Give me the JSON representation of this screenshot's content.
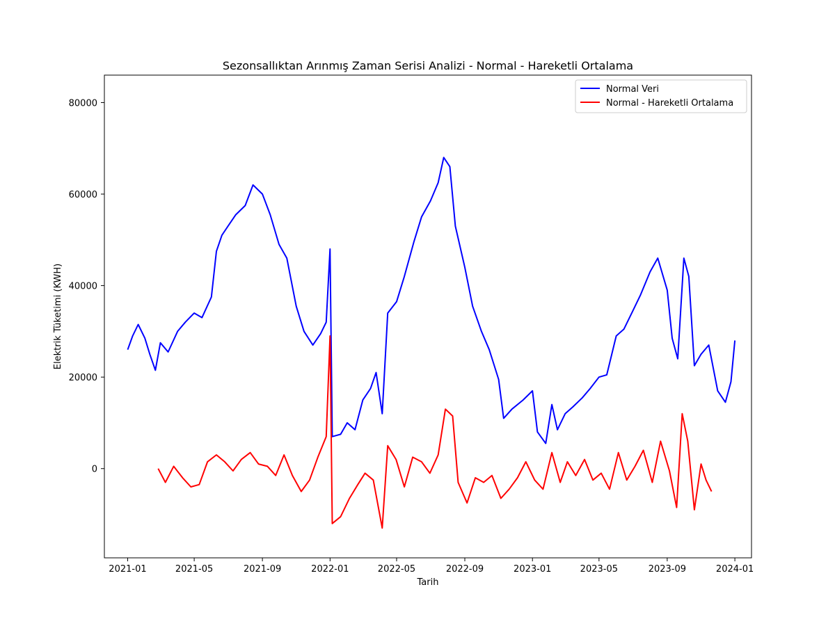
{
  "chart_data": {
    "type": "line",
    "title": "Sezonsallıktan Arınmış Zaman Serisi Analizi - Normal - Hareketli Ortalama",
    "xlabel": "Tarih",
    "ylabel": "Elektrik Tüketimi (KWH)",
    "xlim": [
      "2020-11-20",
      "2024-01-31"
    ],
    "ylim": [
      -19500,
      86000
    ],
    "x_ticks": [
      "2021-01",
      "2021-05",
      "2021-09",
      "2022-01",
      "2022-05",
      "2022-09",
      "2023-01",
      "2023-05",
      "2023-09",
      "2024-01"
    ],
    "y_ticks": [
      0,
      20000,
      40000,
      60000,
      80000
    ],
    "grid": false,
    "legend_position": "top-right",
    "series": [
      {
        "name": "Normal Veri",
        "color": "#0000ff",
        "points": [
          [
            "2021-01-01",
            26000
          ],
          [
            "2021-01-10",
            29000
          ],
          [
            "2021-01-20",
            31500
          ],
          [
            "2021-02-01",
            28500
          ],
          [
            "2021-02-10",
            25000
          ],
          [
            "2021-02-20",
            21500
          ],
          [
            "2021-03-01",
            27500
          ],
          [
            "2021-03-15",
            25500
          ],
          [
            "2021-04-01",
            30000
          ],
          [
            "2021-04-15",
            32000
          ],
          [
            "2021-05-01",
            34000
          ],
          [
            "2021-05-15",
            33000
          ],
          [
            "2021-06-01",
            37500
          ],
          [
            "2021-06-10",
            47500
          ],
          [
            "2021-06-20",
            51000
          ],
          [
            "2021-07-01",
            53000
          ],
          [
            "2021-07-15",
            55500
          ],
          [
            "2021-08-01",
            57500
          ],
          [
            "2021-08-15",
            62000
          ],
          [
            "2021-09-01",
            60000
          ],
          [
            "2021-09-15",
            55500
          ],
          [
            "2021-10-01",
            49000
          ],
          [
            "2021-10-15",
            46000
          ],
          [
            "2021-11-01",
            35500
          ],
          [
            "2021-11-15",
            30000
          ],
          [
            "2021-12-01",
            27000
          ],
          [
            "2021-12-15",
            29500
          ],
          [
            "2021-12-25",
            32000
          ],
          [
            "2022-01-01",
            48000
          ],
          [
            "2022-01-05",
            7000
          ],
          [
            "2022-01-20",
            7500
          ],
          [
            "2022-02-01",
            10000
          ],
          [
            "2022-02-15",
            8500
          ],
          [
            "2022-03-01",
            15000
          ],
          [
            "2022-03-15",
            17500
          ],
          [
            "2022-03-25",
            21000
          ],
          [
            "2022-04-05",
            12000
          ],
          [
            "2022-04-15",
            34000
          ],
          [
            "2022-05-01",
            36500
          ],
          [
            "2022-05-15",
            42000
          ],
          [
            "2022-06-01",
            49500
          ],
          [
            "2022-06-15",
            55000
          ],
          [
            "2022-07-01",
            58500
          ],
          [
            "2022-07-15",
            62500
          ],
          [
            "2022-07-25",
            68000
          ],
          [
            "2022-08-05",
            66000
          ],
          [
            "2022-08-15",
            53000
          ],
          [
            "2022-09-01",
            44000
          ],
          [
            "2022-09-15",
            35500
          ],
          [
            "2022-10-01",
            30000
          ],
          [
            "2022-10-15",
            26000
          ],
          [
            "2022-11-01",
            19500
          ],
          [
            "2022-11-10",
            11000
          ],
          [
            "2022-11-25",
            13000
          ],
          [
            "2022-12-15",
            15000
          ],
          [
            "2023-01-01",
            17000
          ],
          [
            "2023-01-10",
            8000
          ],
          [
            "2023-01-25",
            5500
          ],
          [
            "2023-02-05",
            14000
          ],
          [
            "2023-02-15",
            8500
          ],
          [
            "2023-03-01",
            12000
          ],
          [
            "2023-03-15",
            13500
          ],
          [
            "2023-04-01",
            15500
          ],
          [
            "2023-04-15",
            17500
          ],
          [
            "2023-05-01",
            20000
          ],
          [
            "2023-05-15",
            20500
          ],
          [
            "2023-06-01",
            29000
          ],
          [
            "2023-06-15",
            30500
          ],
          [
            "2023-07-01",
            34500
          ],
          [
            "2023-07-15",
            38000
          ],
          [
            "2023-08-01",
            43000
          ],
          [
            "2023-08-15",
            46000
          ],
          [
            "2023-09-01",
            39000
          ],
          [
            "2023-09-10",
            28500
          ],
          [
            "2023-09-20",
            24000
          ],
          [
            "2023-10-01",
            46000
          ],
          [
            "2023-10-10",
            42000
          ],
          [
            "2023-10-20",
            22500
          ],
          [
            "2023-11-01",
            25000
          ],
          [
            "2023-11-15",
            27000
          ],
          [
            "2023-12-01",
            17000
          ],
          [
            "2023-12-15",
            14500
          ],
          [
            "2023-12-25",
            19000
          ],
          [
            "2024-01-01",
            28000
          ]
        ]
      },
      {
        "name": "Normal - Hareketli Ortalama",
        "color": "#ff0000",
        "points": [
          [
            "2021-02-25",
            0
          ],
          [
            "2021-03-10",
            -3000
          ],
          [
            "2021-03-25",
            500
          ],
          [
            "2021-04-10",
            -2000
          ],
          [
            "2021-04-25",
            -4000
          ],
          [
            "2021-05-10",
            -3500
          ],
          [
            "2021-05-25",
            1500
          ],
          [
            "2021-06-10",
            3000
          ],
          [
            "2021-06-25",
            1500
          ],
          [
            "2021-07-10",
            -500
          ],
          [
            "2021-07-25",
            2000
          ],
          [
            "2021-08-10",
            3500
          ],
          [
            "2021-08-25",
            1000
          ],
          [
            "2021-09-10",
            500
          ],
          [
            "2021-09-25",
            -1500
          ],
          [
            "2021-10-10",
            3000
          ],
          [
            "2021-10-25",
            -1500
          ],
          [
            "2021-11-10",
            -5000
          ],
          [
            "2021-11-25",
            -2500
          ],
          [
            "2021-12-10",
            2500
          ],
          [
            "2021-12-25",
            7000
          ],
          [
            "2022-01-01",
            29000
          ],
          [
            "2022-01-05",
            -12000
          ],
          [
            "2022-01-20",
            -10500
          ],
          [
            "2022-02-05",
            -6500
          ],
          [
            "2022-02-20",
            -3500
          ],
          [
            "2022-03-05",
            -1000
          ],
          [
            "2022-03-20",
            -2500
          ],
          [
            "2022-04-05",
            -13000
          ],
          [
            "2022-04-15",
            5000
          ],
          [
            "2022-04-30",
            2000
          ],
          [
            "2022-05-15",
            -4000
          ],
          [
            "2022-05-30",
            2500
          ],
          [
            "2022-06-15",
            1500
          ],
          [
            "2022-06-30",
            -1000
          ],
          [
            "2022-07-15",
            3000
          ],
          [
            "2022-07-28",
            13000
          ],
          [
            "2022-08-10",
            11500
          ],
          [
            "2022-08-20",
            -3000
          ],
          [
            "2022-09-05",
            -7500
          ],
          [
            "2022-09-20",
            -2000
          ],
          [
            "2022-10-05",
            -3000
          ],
          [
            "2022-10-20",
            -1500
          ],
          [
            "2022-11-05",
            -6500
          ],
          [
            "2022-11-20",
            -4500
          ],
          [
            "2022-12-05",
            -2000
          ],
          [
            "2022-12-20",
            1500
          ],
          [
            "2023-01-05",
            -2500
          ],
          [
            "2023-01-20",
            -4500
          ],
          [
            "2023-02-05",
            3500
          ],
          [
            "2023-02-20",
            -3000
          ],
          [
            "2023-03-05",
            1500
          ],
          [
            "2023-03-20",
            -1500
          ],
          [
            "2023-04-05",
            2000
          ],
          [
            "2023-04-20",
            -2500
          ],
          [
            "2023-05-05",
            -1000
          ],
          [
            "2023-05-20",
            -4500
          ],
          [
            "2023-06-05",
            3500
          ],
          [
            "2023-06-20",
            -2500
          ],
          [
            "2023-07-05",
            500
          ],
          [
            "2023-07-20",
            4000
          ],
          [
            "2023-08-05",
            -3000
          ],
          [
            "2023-08-20",
            6000
          ],
          [
            "2023-09-05",
            -500
          ],
          [
            "2023-09-18",
            -8500
          ],
          [
            "2023-09-28",
            12000
          ],
          [
            "2023-10-08",
            6000
          ],
          [
            "2023-10-20",
            -9000
          ],
          [
            "2023-11-01",
            1000
          ],
          [
            "2023-11-10",
            -2500
          ],
          [
            "2023-11-20",
            -5000
          ]
        ]
      }
    ]
  }
}
